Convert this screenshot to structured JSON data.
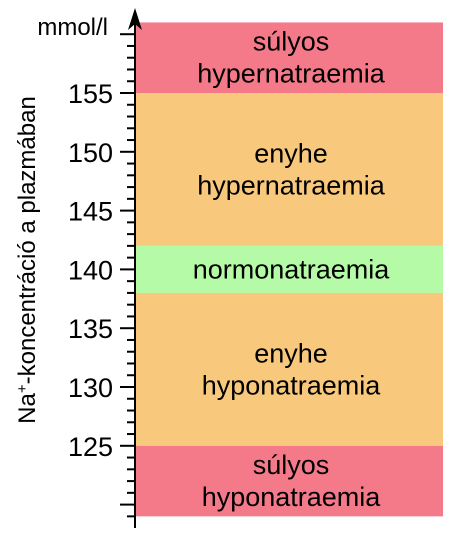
{
  "unit": "mmol/l",
  "axis_title": {
    "prefix": "Na",
    "superscript": "+",
    "suffix": "-koncentráció a plazmában"
  },
  "scale": {
    "min": 119,
    "max": 161,
    "major_step": 5,
    "minor_step": 1
  },
  "ticks": [
    155,
    150,
    145,
    140,
    135,
    130,
    125
  ],
  "colors": {
    "severe": "#f47a8a",
    "mild": "#f8c97c",
    "normal": "#b5fba7"
  },
  "bands": [
    {
      "from": 155,
      "to": 161,
      "color_key": "severe",
      "lines": [
        "súlyos",
        "hypernatraemia"
      ]
    },
    {
      "from": 142,
      "to": 155,
      "color_key": "mild",
      "lines": [
        "enyhe",
        "hypernatraemia"
      ]
    },
    {
      "from": 138,
      "to": 142,
      "color_key": "normal",
      "lines": [
        "normonatraemia"
      ]
    },
    {
      "from": 125,
      "to": 138,
      "color_key": "mild",
      "lines": [
        "enyhe",
        "hyponatraemia"
      ]
    },
    {
      "from": 119,
      "to": 125,
      "color_key": "severe",
      "lines": [
        "súlyos",
        "hyponatraemia"
      ]
    }
  ]
}
